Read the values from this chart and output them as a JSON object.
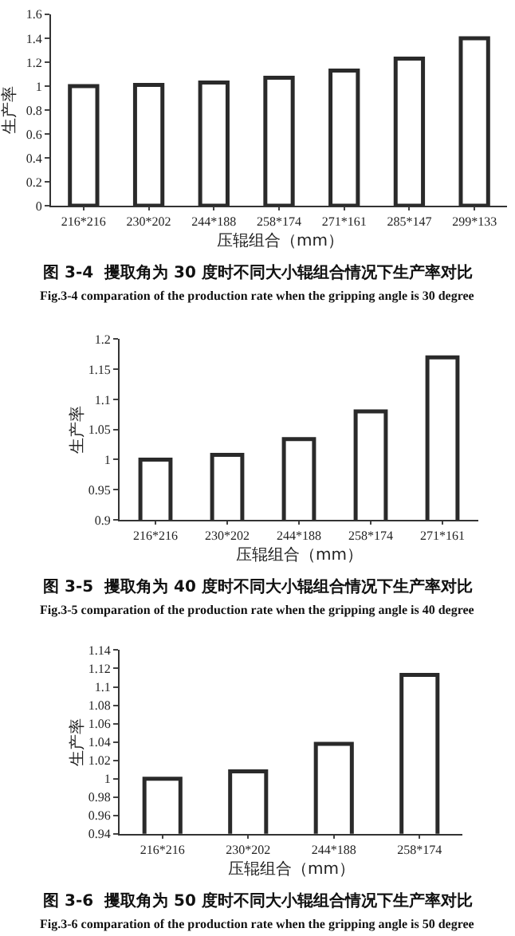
{
  "chart_data": [
    {
      "type": "bar",
      "title": "图 3-4  攫取角为 30 度时不同大小辊组合情况下生产率对比",
      "subtitle": "Fig.3-4 comparation of the production rate when the gripping angle is 30 degree",
      "xlabel": "压辊组合（mm）",
      "ylabel": "生产率",
      "categories": [
        "216*216",
        "230*202",
        "244*188",
        "258*174",
        "271*161",
        "285*147",
        "299*133"
      ],
      "values": [
        1.0,
        1.01,
        1.03,
        1.07,
        1.13,
        1.23,
        1.4
      ],
      "color": "#ffffff",
      "ylim": [
        0,
        1.6
      ],
      "yticks": [
        0,
        0.2,
        0.4,
        0.6,
        0.8,
        1,
        1.2,
        1.4,
        1.6
      ]
    },
    {
      "type": "bar",
      "title": "图 3-5  攫取角为 40 度时不同大小辊组合情况下生产率对比",
      "subtitle": "Fig.3-5 comparation of the production rate when the gripping angle is 40 degree",
      "xlabel": "压辊组合（mm）",
      "ylabel": "生产率",
      "categories": [
        "216*216",
        "230*202",
        "244*188",
        "258*174",
        "271*161"
      ],
      "values": [
        1.0,
        1.008,
        1.034,
        1.08,
        1.17
      ],
      "color": "#ffffff",
      "ylim": [
        0.9,
        1.2
      ],
      "yticks": [
        0.9,
        0.95,
        1,
        1.05,
        1.1,
        1.15,
        1.2
      ]
    },
    {
      "type": "bar",
      "title": "图 3-6  攫取角为 50 度时不同大小辊组合情况下生产率对比",
      "subtitle": "Fig.3-6 comparation of the production rate when the gripping angle is 50 degree",
      "xlabel": "压辊组合（mm）",
      "ylabel": "生产率",
      "categories": [
        "216*216",
        "230*202",
        "244*188",
        "258*174"
      ],
      "values": [
        1.0,
        1.008,
        1.038,
        1.113
      ],
      "color": "#ffffff",
      "ylim": [
        0.94,
        1.14
      ],
      "yticks": [
        0.94,
        0.96,
        0.98,
        1,
        1.02,
        1.04,
        1.06,
        1.08,
        1.1,
        1.12,
        1.14
      ]
    }
  ]
}
